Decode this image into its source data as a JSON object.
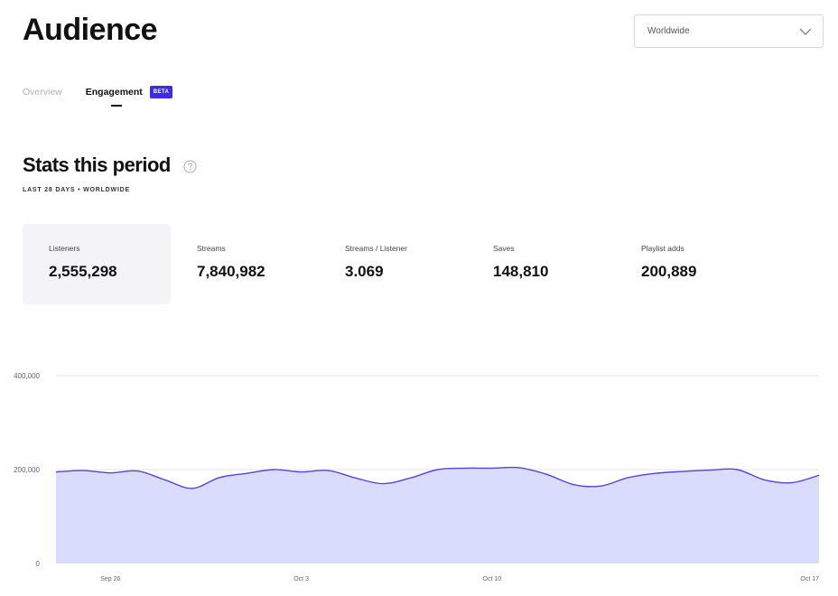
{
  "page": {
    "title": "Audience"
  },
  "region_select": {
    "value": "Worldwide",
    "icon": "chevron-down-icon"
  },
  "tabs": [
    {
      "label": "Overview",
      "active": false
    },
    {
      "label": "Engagement",
      "active": true,
      "badge": "BETA"
    }
  ],
  "stats_section": {
    "title": "Stats this period",
    "help_icon": "question-circle-icon",
    "subtitle": "LAST 28 DAYS • WORLDWIDE"
  },
  "stats": [
    {
      "label": "Listeners",
      "value": "2,555,298",
      "active": true
    },
    {
      "label": "Streams",
      "value": "7,840,982",
      "active": false
    },
    {
      "label": "Streams / Listener",
      "value": "3.069",
      "active": false
    },
    {
      "label": "Saves",
      "value": "148,810",
      "active": false
    },
    {
      "label": "Playlist adds",
      "value": "200,889",
      "active": false
    }
  ],
  "colors": {
    "accent": "#3b2ce8",
    "line": "#5a40e6",
    "area": "#d9dcfc",
    "active_stat_bg": "#f4f4f6"
  },
  "chart_data": {
    "type": "area",
    "series": [
      {
        "values": [
          195000,
          198000,
          193000,
          197000,
          178000,
          160000,
          183000,
          192000,
          200000,
          195000,
          198000,
          182000,
          170000,
          182000,
          200000,
          203000,
          203000,
          204000,
          190000,
          168000,
          165000,
          183000,
          192000,
          196000,
          199000,
          200000,
          178000,
          172000,
          188000
        ]
      }
    ],
    "x_ticks": [
      "Sep 26",
      "Oct 3",
      "Oct 10",
      "Oct 17"
    ],
    "y_ticks": [
      "400,000",
      "200,000",
      "0"
    ],
    "ylim": [
      0,
      400000
    ],
    "grid": true
  }
}
